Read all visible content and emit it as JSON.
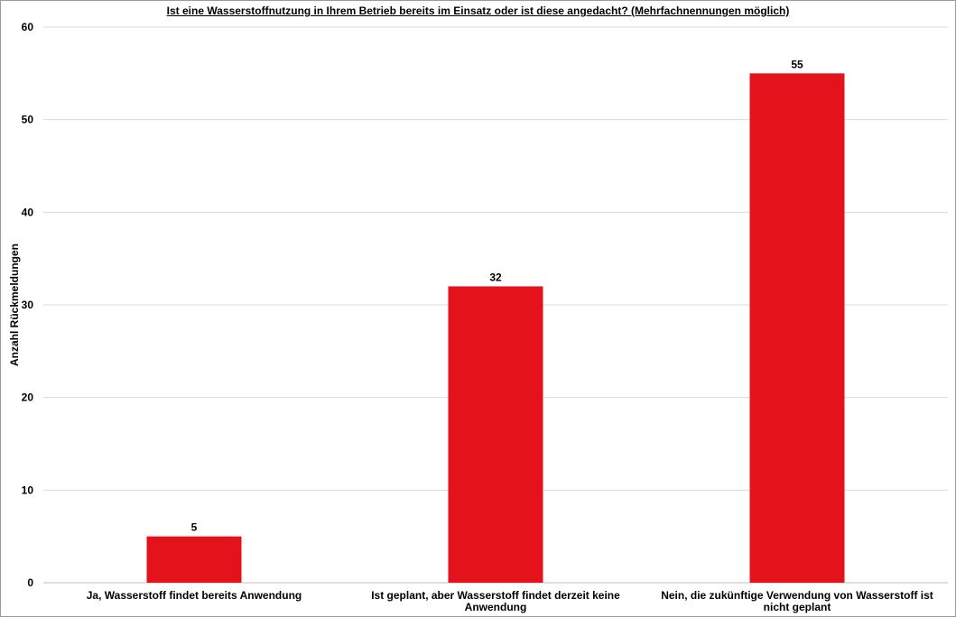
{
  "chart_data": {
    "type": "bar",
    "title": "Ist eine Wasserstoffnutzung  in Ihrem Betrieb bereits im Einsatz oder ist diese angedacht? (Mehrfachnennungen möglich)",
    "xlabel": "",
    "ylabel": "Anzahl Rückmeldungen",
    "ylim": [
      0,
      60
    ],
    "yticks": [
      0,
      10,
      20,
      30,
      40,
      50,
      60
    ],
    "grid": true,
    "bar_color": "#e3121b",
    "categories": [
      "Ja, Wasserstoff findet bereits Anwendung",
      "Ist geplant, aber Wasserstoff findet derzeit keine Anwendung",
      "Nein, die zukünftige Verwendung von Wasserstoff ist nicht geplant"
    ],
    "values": [
      5,
      32,
      55
    ],
    "data_labels": [
      "5",
      "32",
      "55"
    ]
  }
}
